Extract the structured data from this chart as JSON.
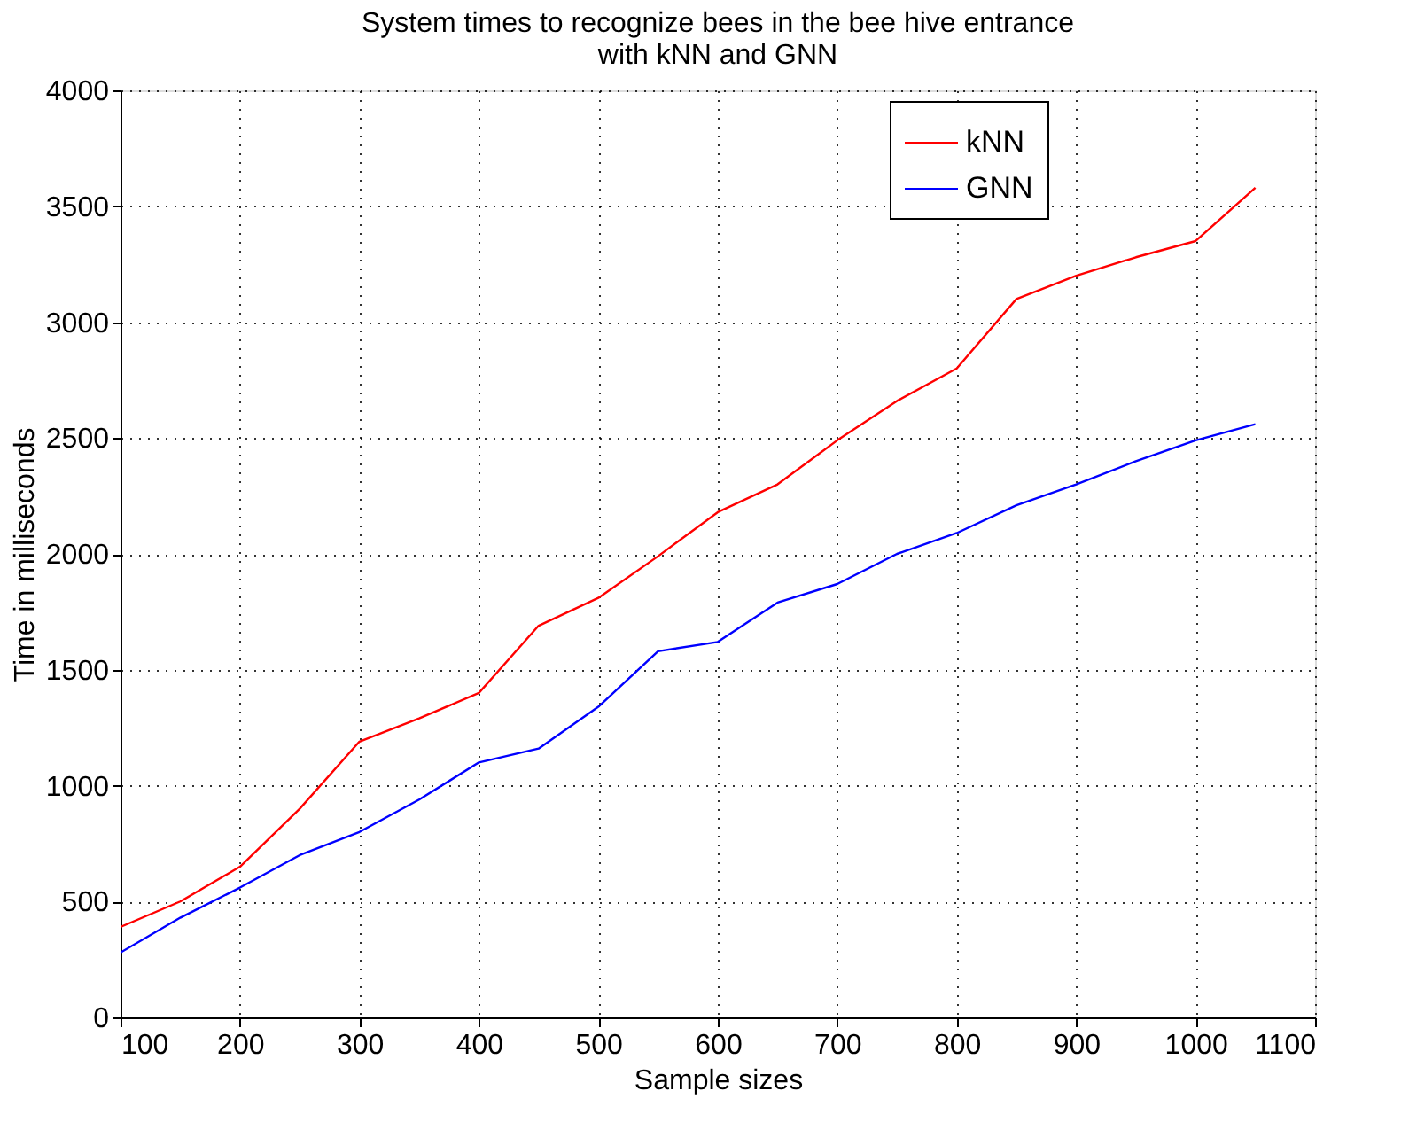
{
  "chart_data": {
    "type": "line",
    "title": "System times to recognize bees in the bee hive entrance\nwith kNN and GNN",
    "xlabel": "Sample sizes",
    "ylabel": "Time in milliseconds",
    "x": [
      100,
      150,
      200,
      250,
      300,
      350,
      400,
      450,
      500,
      550,
      600,
      650,
      700,
      750,
      800,
      850,
      900,
      950,
      1000,
      1050
    ],
    "series": [
      {
        "name": "kNN",
        "color": "#ff0000",
        "values": [
          390,
          500,
          650,
          900,
          1190,
          1290,
          1400,
          1690,
          1810,
          1990,
          2180,
          2300,
          2490,
          2660,
          2800,
          3100,
          3200,
          3280,
          3350,
          3580
        ]
      },
      {
        "name": "GNN",
        "color": "#0000ff",
        "values": [
          280,
          430,
          560,
          700,
          800,
          940,
          1100,
          1160,
          1340,
          1580,
          1620,
          1790,
          1870,
          2000,
          2090,
          2210,
          2300,
          2400,
          2490,
          2560
        ]
      }
    ],
    "xlim": [
      100,
      1100
    ],
    "xticks": [
      100,
      200,
      300,
      400,
      500,
      600,
      700,
      800,
      900,
      1000,
      1100
    ],
    "ylim": [
      0,
      4000
    ],
    "yticks": [
      0,
      500,
      1000,
      1500,
      2000,
      2500,
      3000,
      3500,
      4000
    ],
    "grid": true,
    "legend": "top right",
    "marker": "none",
    "line_style": "solid"
  }
}
